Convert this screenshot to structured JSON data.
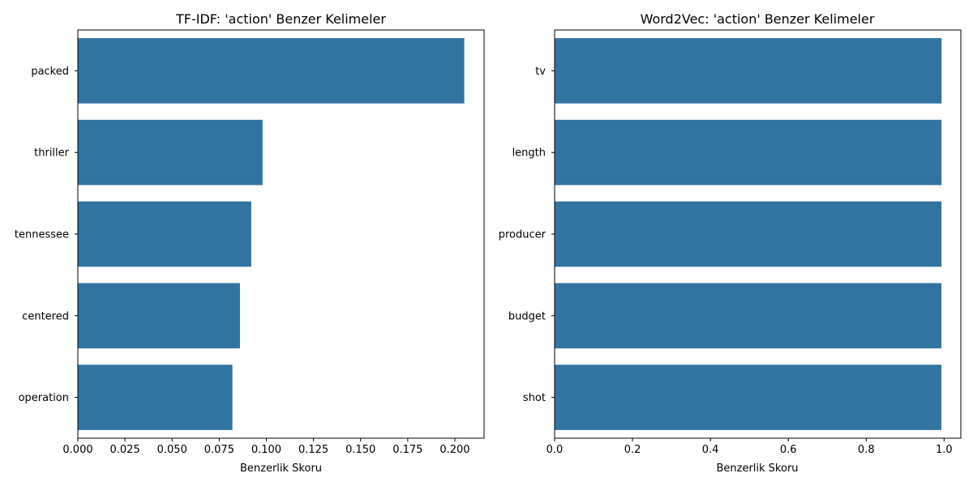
{
  "chart_data": [
    {
      "type": "bar",
      "orientation": "horizontal",
      "title": "TF-IDF: 'action' Benzer Kelimeler",
      "xlabel": "Benzerlik Skoru",
      "ylabel": "",
      "categories": [
        "packed",
        "thriller",
        "tennessee",
        "centered",
        "operation"
      ],
      "values": [
        0.205,
        0.098,
        0.092,
        0.086,
        0.082
      ],
      "xlim": [
        0,
        0.2155
      ],
      "xticks": [
        0.0,
        0.025,
        0.05,
        0.075,
        0.1,
        0.125,
        0.15,
        0.175,
        0.2
      ],
      "xtick_labels": [
        "0.000",
        "0.025",
        "0.050",
        "0.075",
        "0.100",
        "0.125",
        "0.150",
        "0.175",
        "0.200"
      ],
      "bar_color": "#3274a1",
      "grid": false
    },
    {
      "type": "bar",
      "orientation": "horizontal",
      "title": "Word2Vec: 'action' Benzer Kelimeler",
      "xlabel": "Benzerlik Skoru",
      "ylabel": "",
      "categories": [
        "tv",
        "length",
        "producer",
        "budget",
        "shot"
      ],
      "values": [
        0.9935,
        0.9934,
        0.9933,
        0.9932,
        0.9931
      ],
      "xlim": [
        0,
        1.043
      ],
      "xticks": [
        0.0,
        0.2,
        0.4,
        0.6,
        0.8,
        1.0
      ],
      "xtick_labels": [
        "0.0",
        "0.2",
        "0.4",
        "0.6",
        "0.8",
        "1.0"
      ],
      "bar_color": "#3274a1",
      "grid": false
    }
  ]
}
